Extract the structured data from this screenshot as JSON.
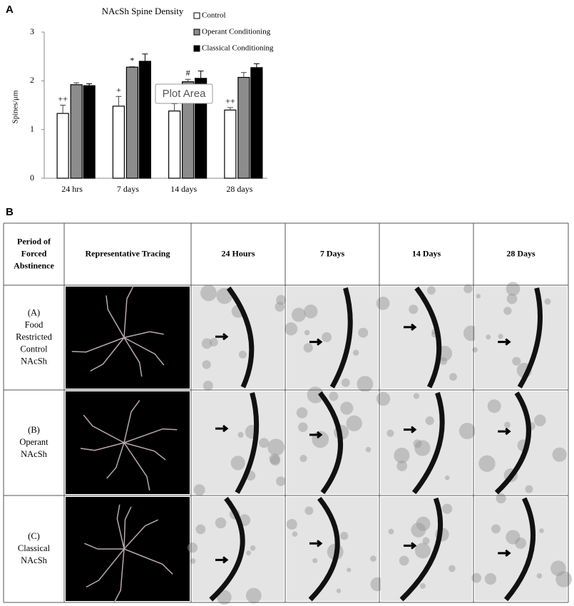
{
  "panel_a_label": "A",
  "chart_data": {
    "type": "bar",
    "title": "NAcSh Spine Density",
    "y_label": "Spines/μm",
    "categories": [
      "24 hrs",
      "7 days",
      "14 days",
      "28 days"
    ],
    "series": [
      {
        "name": "Control",
        "color": "#ffffff",
        "values": [
          1.33,
          1.48,
          1.38,
          1.4
        ],
        "errors": [
          0.17,
          0.2,
          0.15,
          0.05
        ],
        "markers": [
          "++",
          "+",
          null,
          "++"
        ]
      },
      {
        "name": "Operant Conditioning",
        "color": "#8c8c8c",
        "values": [
          1.92,
          2.28,
          1.98,
          2.07
        ],
        "errors": [
          0.04,
          0.01,
          0.05,
          0.1
        ],
        "markers": [
          null,
          "*",
          "#",
          null
        ]
      },
      {
        "name": "Classical Conditioning",
        "color": "#000000",
        "values": [
          1.9,
          2.4,
          2.05,
          2.27
        ],
        "errors": [
          0.04,
          0.15,
          0.15,
          0.08
        ],
        "markers": [
          null,
          null,
          null,
          null
        ]
      }
    ],
    "ylim": [
      0,
      3
    ],
    "yticks": [
      0,
      1,
      2,
      3
    ],
    "grid": false,
    "legend": "upper right",
    "tooltip": "Plot Area"
  },
  "panel_b_label": "B",
  "table": {
    "header": [
      [
        "Period of",
        "Forced",
        "Abstinence"
      ],
      [
        "Representative Tracing"
      ],
      [
        "24 Hours"
      ],
      [
        "7 Days"
      ],
      [
        "14 Days"
      ],
      [
        "28 Days"
      ]
    ],
    "rows": [
      {
        "label": [
          "(A)",
          "Food",
          "Restricted",
          "Control",
          "NAcSh"
        ]
      },
      {
        "label": [
          "(B)",
          "Operant",
          "NAcSh"
        ]
      },
      {
        "label": [
          "(C)",
          "Classical",
          "NAcSh"
        ]
      }
    ]
  }
}
